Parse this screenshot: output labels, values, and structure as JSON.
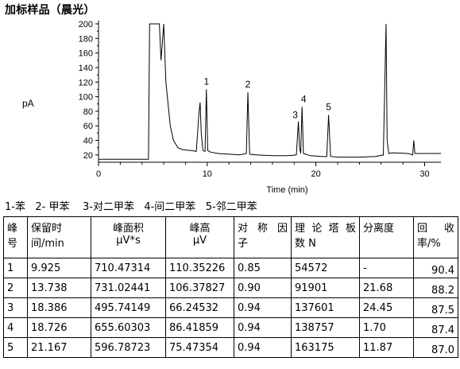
{
  "title": "加标样品（晨光）",
  "chart_data": {
    "type": "line",
    "ylabel": "pA",
    "xlabel": "Time (min)",
    "xlim": [
      0,
      31.5
    ],
    "ylim": [
      10,
      200
    ],
    "x_ticks": [
      "0",
      "10",
      "20",
      "30"
    ],
    "y_ticks": [
      "20",
      "40",
      "60",
      "80",
      "100",
      "120",
      "140",
      "160",
      "180",
      "200"
    ],
    "peak_labels": [
      {
        "label": "1",
        "x": 9.925,
        "y": 110
      },
      {
        "label": "2",
        "x": 13.738,
        "y": 106
      },
      {
        "label": "3",
        "x": 18.386,
        "y": 66
      },
      {
        "label": "4",
        "x": 18.726,
        "y": 86
      },
      {
        "label": "5",
        "x": 21.167,
        "y": 75
      }
    ],
    "series": [
      {
        "x": [
          0,
          4.6,
          4.7,
          5.3,
          5.4,
          5.6,
          5.75,
          6.0,
          6.2,
          6.6,
          6.9,
          7.3,
          7.8,
          8.5,
          9.0,
          9.25,
          9.35,
          9.45,
          9.6,
          9.8,
          9.925,
          10.05,
          10.3,
          11,
          12,
          13,
          13.6,
          13.738,
          13.9,
          14.5,
          16,
          17.5,
          18.2,
          18.386,
          18.5,
          18.6,
          18.726,
          18.85,
          19.5,
          20.5,
          21.0,
          21.167,
          21.35,
          22,
          24,
          25.5,
          26.2,
          26.45,
          26.55,
          26.7,
          27,
          28.5,
          28.9,
          29.0,
          29.1,
          30,
          31.5
        ],
        "y": [
          14,
          14,
          200,
          200,
          200,
          200,
          150,
          200,
          120,
          60,
          40,
          30,
          27,
          26,
          25,
          80,
          92,
          50,
          26,
          25,
          110,
          26,
          24,
          22,
          21,
          20,
          22,
          106,
          21,
          20,
          19,
          19,
          20,
          66,
          30,
          22,
          86,
          22,
          19,
          18,
          18,
          75,
          18,
          17,
          17,
          18,
          20,
          200,
          40,
          22,
          23,
          22,
          20,
          40,
          22,
          22,
          22
        ]
      }
    ]
  },
  "legend_text": "1-苯   2- 甲苯    3-对二甲苯   4-间二甲苯   5-邻二甲苯",
  "table": {
    "headers": [
      "峰号",
      "保留时间/min",
      "峰面积μV*s",
      "峰高μV",
      "对称因子",
      "理论塔板数 N",
      "分离度",
      "回收率/%"
    ],
    "header_lines": [
      [
        "峰",
        "号"
      ],
      [
        "保留时",
        "间/min"
      ],
      [
        "峰面积",
        "μV*s"
      ],
      [
        "峰高",
        "μV"
      ],
      [
        "对 称 因",
        "子"
      ],
      [
        "理论塔板",
        "数 N"
      ],
      [
        "分离度",
        ""
      ],
      [
        "回  收",
        "率/%"
      ]
    ],
    "rows": [
      [
        "1",
        "9.925",
        "710.47314",
        "110.35226",
        "0.85",
        "54572",
        "-",
        "90.4"
      ],
      [
        "2",
        "13.738",
        "731.02441",
        "106.37827",
        "0.90",
        "91901",
        "21.68",
        "88.2"
      ],
      [
        "3",
        "18.386",
        "495.74149",
        "66.24532",
        "0.94",
        "137601",
        "24.45",
        "87.5"
      ],
      [
        "4",
        "18.726",
        "655.60303",
        "86.41859",
        "0.94",
        "138757",
        "1.70",
        "87.4"
      ],
      [
        "5",
        "21.167",
        "596.78723",
        "75.47354",
        "0.94",
        "163175",
        "11.87",
        "87.0"
      ]
    ]
  }
}
